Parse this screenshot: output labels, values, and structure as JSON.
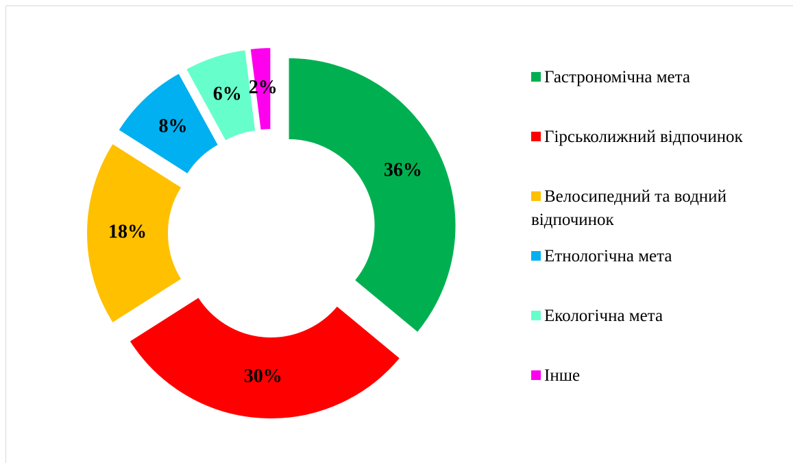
{
  "chart_data": {
    "type": "donut",
    "categories": [
      "Гастрономічна мета",
      "Гірськолижний відпочинок",
      "Велосипедний та водний відпочинок",
      "Етнологічна мета",
      "Екологічна мета",
      "Інше"
    ],
    "values": [
      36,
      30,
      18,
      8,
      6,
      2
    ],
    "value_labels": [
      "36%",
      "30%",
      "18%",
      "8%",
      "6%",
      "2%"
    ],
    "colors": [
      "#00b050",
      "#ff0000",
      "#ffc000",
      "#00b0f0",
      "#66ffcc",
      "#ff00ee"
    ],
    "legend": "right"
  }
}
